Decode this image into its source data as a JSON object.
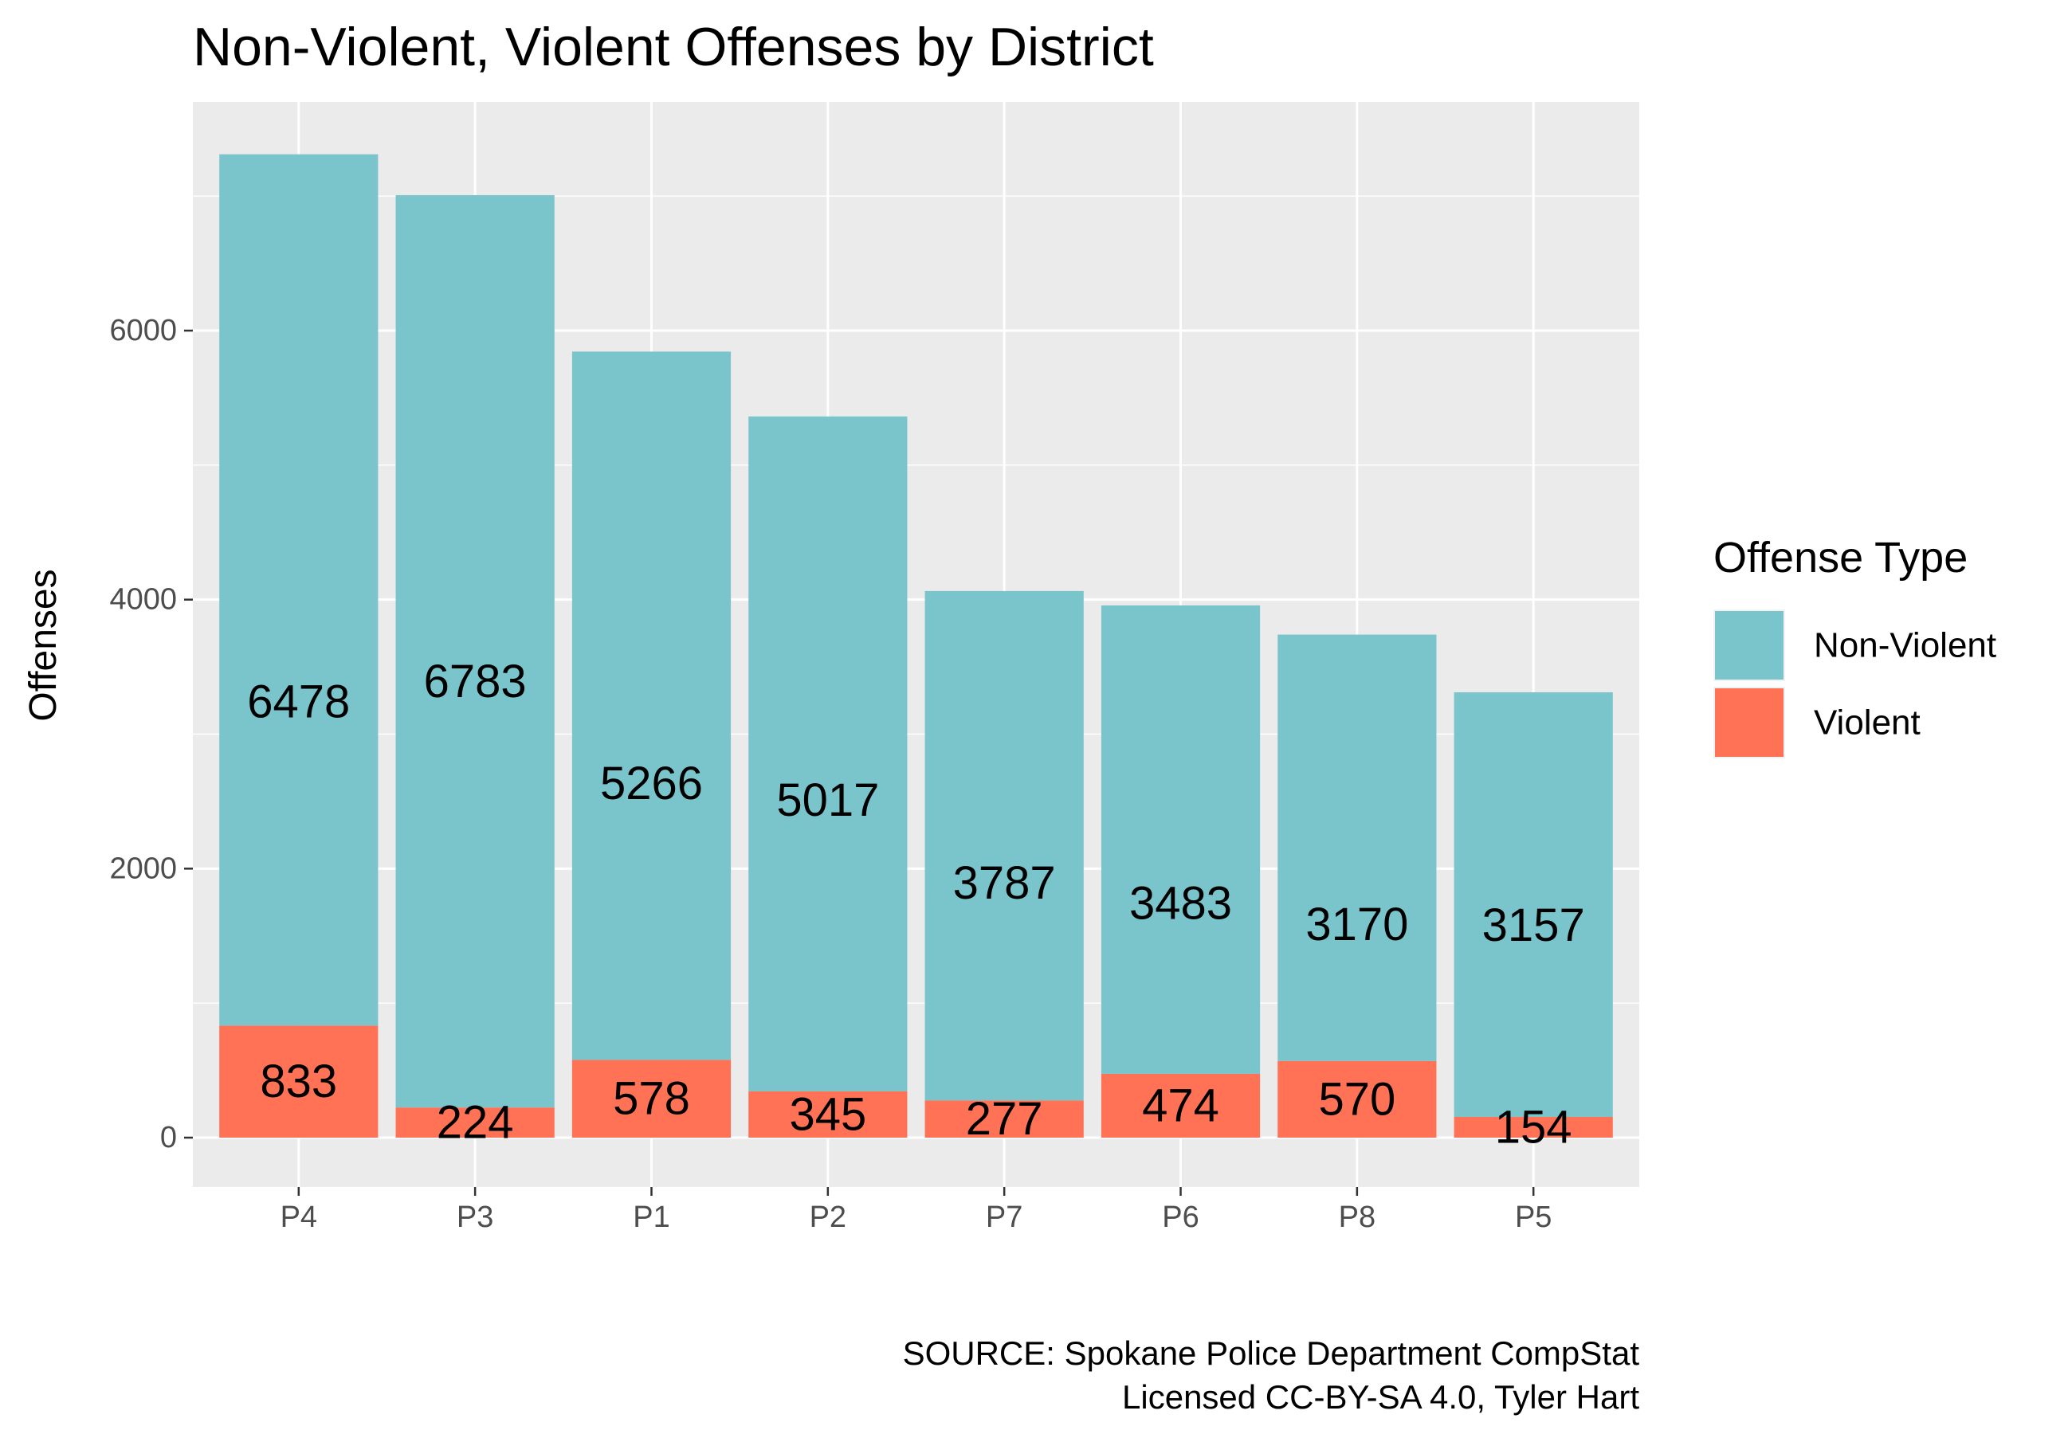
{
  "chart_data": {
    "type": "bar",
    "stacked": true,
    "title": "Non-Violent, Violent Offenses by District",
    "xlabel": "",
    "ylabel": "Offenses",
    "categories": [
      "P4",
      "P3",
      "P1",
      "P2",
      "P7",
      "P6",
      "P8",
      "P5"
    ],
    "series": [
      {
        "name": "Violent",
        "color": "#ff7256",
        "values": [
          833,
          224,
          578,
          345,
          277,
          474,
          570,
          154
        ]
      },
      {
        "name": "Non-Violent",
        "color": "#7ac4cc",
        "values": [
          6478,
          6783,
          5266,
          5017,
          3787,
          3483,
          3170,
          3157
        ]
      }
    ],
    "ylim": [
      -350,
      7650
    ],
    "yticks": [
      0,
      2000,
      4000,
      6000
    ],
    "yticks_minor": [
      1000,
      3000,
      5000,
      7000
    ],
    "grid": true,
    "panel_background": "#ebebeb",
    "legend": {
      "title": "Offense Type",
      "position": "right",
      "items": [
        {
          "label": "Non-Violent",
          "color": "#7ac4cc"
        },
        {
          "label": "Violent",
          "color": "#ff7256"
        }
      ]
    },
    "caption": [
      "SOURCE: Spokane Police Department CompStat",
      "Licensed CC-BY-SA 4.0, Tyler Hart"
    ]
  }
}
